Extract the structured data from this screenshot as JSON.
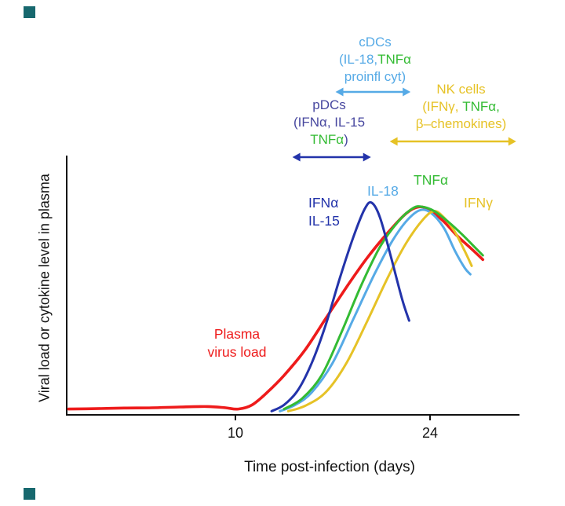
{
  "colors": {
    "red": "#ee1b1b",
    "navy": "#2333aa",
    "sky": "#56aae6",
    "green": "#33bb33",
    "gold": "#e6c226",
    "slate": "#47479f",
    "teal": "#17686e",
    "axis": "#111111"
  },
  "chart_data": {
    "type": "line",
    "title": "",
    "xlabel": "Time post-infection (days)",
    "ylabel": "Viral load or cytokine level in plasma",
    "x_axis": {
      "unit": "days",
      "range": [
        -2,
        30
      ],
      "ticks": [
        {
          "label": "10",
          "day": 10
        },
        {
          "label": "24",
          "day": 24
        }
      ]
    },
    "y_axis": {
      "range": [
        0,
        100
      ],
      "note": "relative level in plasma, axis unlabeled"
    },
    "series": [
      {
        "key": "virus",
        "name": "Plasma virus load",
        "color": "red",
        "width": 3.6,
        "points": [
          [
            -2,
            2
          ],
          [
            0,
            2.2
          ],
          [
            2,
            2.5
          ],
          [
            4,
            2.6
          ],
          [
            6,
            3
          ],
          [
            8,
            3.2
          ],
          [
            9.3,
            2.6
          ],
          [
            10.2,
            2
          ],
          [
            11.2,
            4
          ],
          [
            12.3,
            10
          ],
          [
            13.5,
            18
          ],
          [
            15,
            30
          ],
          [
            16.5,
            45
          ],
          [
            18,
            60
          ],
          [
            19.5,
            74
          ],
          [
            21,
            86
          ],
          [
            22.3,
            95
          ],
          [
            23.2,
            98
          ],
          [
            24,
            96.5
          ],
          [
            25,
            91
          ],
          [
            26,
            84
          ],
          [
            27,
            78
          ],
          [
            27.8,
            73
          ]
        ]
      },
      {
        "key": "il18",
        "name": "IL-18",
        "color": "sky",
        "width": 3,
        "points": [
          [
            13.2,
            1
          ],
          [
            14.3,
            4
          ],
          [
            15.5,
            10
          ],
          [
            17,
            24
          ],
          [
            18.5,
            45
          ],
          [
            20,
            66
          ],
          [
            21.3,
            82
          ],
          [
            22.4,
            92
          ],
          [
            23.3,
            96.5
          ],
          [
            24.1,
            95
          ],
          [
            25,
            88
          ],
          [
            25.8,
            77
          ],
          [
            26.5,
            69
          ],
          [
            26.9,
            66
          ]
        ]
      },
      {
        "key": "ifng",
        "name": "IFNγ",
        "color": "gold",
        "width": 3,
        "points": [
          [
            13.8,
            1
          ],
          [
            15,
            3.5
          ],
          [
            16.5,
            10
          ],
          [
            18,
            24
          ],
          [
            19.5,
            44
          ],
          [
            21,
            65
          ],
          [
            22.3,
            81
          ],
          [
            23.5,
            92
          ],
          [
            24.3,
            96
          ],
          [
            25,
            93
          ],
          [
            25.8,
            86
          ],
          [
            26.5,
            77
          ],
          [
            27,
            70
          ]
        ]
      },
      {
        "key": "tnfa",
        "name": "TNFα",
        "color": "green",
        "width": 3,
        "points": [
          [
            13.5,
            2
          ],
          [
            14.8,
            7
          ],
          [
            16.2,
            18
          ],
          [
            17.6,
            38
          ],
          [
            19,
            60
          ],
          [
            20.4,
            79
          ],
          [
            21.7,
            91
          ],
          [
            22.8,
            97.5
          ],
          [
            23.5,
            98
          ],
          [
            24.3,
            96
          ],
          [
            25.3,
            91
          ],
          [
            26.3,
            85
          ],
          [
            27.2,
            79
          ],
          [
            27.8,
            75
          ]
        ]
      },
      {
        "key": "ifna_il15",
        "name": "IFNα / IL-15",
        "color": "navy",
        "width": 3,
        "points": [
          [
            12.6,
            1
          ],
          [
            13.5,
            4
          ],
          [
            14.5,
            11
          ],
          [
            15.5,
            24
          ],
          [
            16.5,
            42
          ],
          [
            17.5,
            64
          ],
          [
            18.5,
            84
          ],
          [
            19.3,
            97
          ],
          [
            19.8,
            100
          ],
          [
            20.4,
            93
          ],
          [
            21.2,
            74
          ],
          [
            22,
            54
          ],
          [
            22.5,
            44
          ]
        ]
      }
    ]
  },
  "annotations": {
    "cdcs": {
      "title": "cDCs",
      "line2_pre": "(IL-18,",
      "line2_tnf": "TNFα",
      "line3": "proinfl cyt)",
      "arrow_days": [
        17.2,
        22.6
      ]
    },
    "pdcs": {
      "title": "pDCs",
      "line2": "(IFNα, IL-15",
      "line3_tnf": "TNFα",
      "line3_close": ")",
      "arrow_days": [
        14.1,
        19.75
      ]
    },
    "nk": {
      "title": "NK cells",
      "line2_ifng": "(IFNγ,",
      "line2_tnf": " TNFα,",
      "line3": "β–chemokines)",
      "arrow_days": [
        21.1,
        30.2
      ]
    }
  },
  "curve_labels": {
    "ifna": "IFNα",
    "il15": "IL-15",
    "il18": "IL-18",
    "tnfa": "TNFα",
    "ifng": "IFNγ",
    "plasma_line1": "Plasma",
    "plasma_line2": "virus load"
  }
}
